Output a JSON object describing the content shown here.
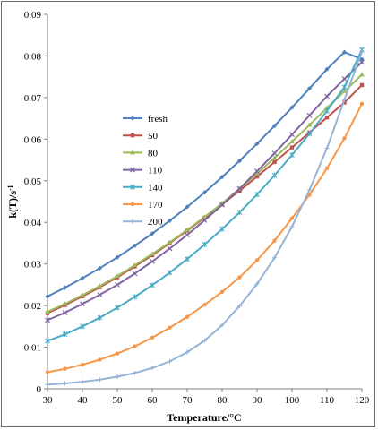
{
  "chart_data": {
    "type": "line",
    "title": "",
    "xlabel": "Temperature/°C",
    "ylabel_main": "k(T)/s",
    "ylabel_sup": "-1",
    "xlim": [
      30,
      120
    ],
    "ylim": [
      0,
      0.09
    ],
    "x_ticks": [
      "30",
      "40",
      "50",
      "60",
      "70",
      "80",
      "90",
      "100",
      "110",
      "120"
    ],
    "y_ticks": [
      "0",
      "0.01",
      "0.02",
      "0.03",
      "0.04",
      "0.05",
      "0.06",
      "0.07",
      "0.08",
      "0.09"
    ],
    "grid": false,
    "legend_position": "middle-left",
    "x": [
      30,
      35,
      40,
      45,
      50,
      55,
      60,
      65,
      70,
      75,
      80,
      85,
      90,
      95,
      100,
      105,
      110,
      115,
      120
    ],
    "series": [
      {
        "name": "fresh",
        "color": "#4f81bd",
        "marker": "diamond",
        "values": [
          0.0222,
          0.0243,
          0.0266,
          0.029,
          0.0316,
          0.0344,
          0.0373,
          0.0404,
          0.0437,
          0.0472,
          0.0509,
          0.0548,
          0.0589,
          0.0632,
          0.0676,
          0.0722,
          0.0768,
          0.0809,
          0.0792
        ]
      },
      {
        "name": "50",
        "color": "#c0504d",
        "marker": "square",
        "values": [
          0.0182,
          0.0201,
          0.0222,
          0.0244,
          0.0268,
          0.0294,
          0.0321,
          0.035,
          0.038,
          0.0411,
          0.0443,
          0.0476,
          0.051,
          0.0545,
          0.058,
          0.0616,
          0.0652,
          0.0688,
          0.073
        ]
      },
      {
        "name": "80",
        "color": "#9bbb59",
        "marker": "triangle",
        "values": [
          0.0185,
          0.0204,
          0.0225,
          0.0247,
          0.0271,
          0.0297,
          0.0324,
          0.0352,
          0.0382,
          0.0413,
          0.0446,
          0.0481,
          0.0517,
          0.0555,
          0.0594,
          0.0634,
          0.0675,
          0.0715,
          0.0755
        ]
      },
      {
        "name": "110",
        "color": "#8064a2",
        "marker": "x",
        "values": [
          0.0165,
          0.0183,
          0.0204,
          0.0226,
          0.025,
          0.0277,
          0.0306,
          0.0337,
          0.037,
          0.0405,
          0.0442,
          0.0481,
          0.0523,
          0.0566,
          0.0611,
          0.0657,
          0.0703,
          0.0745,
          0.0785
        ]
      },
      {
        "name": "140",
        "color": "#4bacc6",
        "marker": "star",
        "values": [
          0.0115,
          0.0131,
          0.015,
          0.0171,
          0.0195,
          0.0221,
          0.0249,
          0.0279,
          0.0312,
          0.0347,
          0.0384,
          0.0424,
          0.0467,
          0.0513,
          0.0562,
          0.0613,
          0.0668,
          0.0725,
          0.0815
        ]
      },
      {
        "name": "170",
        "color": "#f79646",
        "marker": "circle",
        "values": [
          0.004,
          0.0048,
          0.0058,
          0.007,
          0.0085,
          0.0102,
          0.0123,
          0.0147,
          0.0173,
          0.0202,
          0.0233,
          0.0268,
          0.0309,
          0.0356,
          0.041,
          0.0466,
          0.053,
          0.0602,
          0.0685
        ]
      },
      {
        "name": "200",
        "color": "#95b3d7",
        "marker": "plus",
        "values": [
          0.001,
          0.0013,
          0.0017,
          0.0022,
          0.0029,
          0.0038,
          0.005,
          0.0066,
          0.0088,
          0.0116,
          0.0153,
          0.0199,
          0.0252,
          0.0315,
          0.039,
          0.0478,
          0.0578,
          0.0695,
          0.081
        ]
      }
    ]
  }
}
